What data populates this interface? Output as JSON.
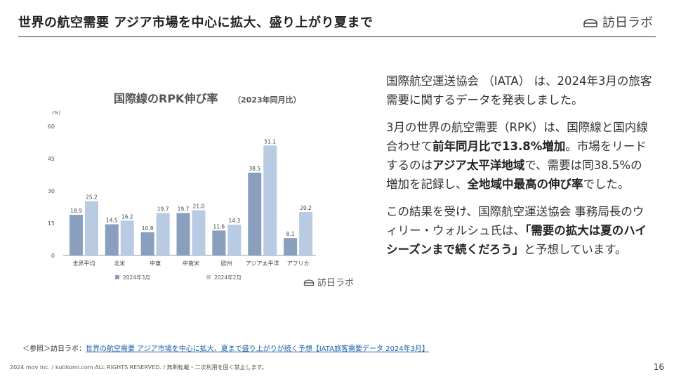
{
  "header": {
    "title": "世界の航空需要 アジア市場を中心に拡大、盛り上がり夏まで",
    "logo_text": "訪日ラボ"
  },
  "chart_data": {
    "type": "bar",
    "title": "国際線のRPK伸び率",
    "subtitle": "（2023年同月比）",
    "unit_label": "(%)",
    "categories": [
      "世界平均",
      "北米",
      "中東",
      "中南米",
      "欧州",
      "アジア太平洋",
      "アフリカ"
    ],
    "series": [
      {
        "name": "2024年3月",
        "color": "#8a9fbd",
        "values": [
          18.9,
          14.5,
          10.8,
          19.7,
          11.6,
          38.5,
          8.1
        ]
      },
      {
        "name": "2024年2月",
        "color": "#b8cbe3",
        "values": [
          25.2,
          16.2,
          19.7,
          21.0,
          14.3,
          51.1,
          20.2
        ]
      }
    ],
    "value_labels": [
      [
        "18.9",
        "14.5",
        "10.8",
        "19.7",
        "11.6",
        "38.5",
        "8.1"
      ],
      [
        "25.2",
        "16.2",
        "19.7",
        "21.0",
        "14.3",
        "51.1",
        "20.2"
      ]
    ],
    "yticks": [
      "0",
      "15",
      "30",
      "45",
      "60"
    ],
    "ylim": [
      0,
      60
    ],
    "grid": false,
    "legend_position": "bottom",
    "logo_text": "訪日ラボ"
  },
  "text": {
    "p1": "国際航空運送協会 （IATA） は、2024年3月の旅客需要に関するデータを発表しました。",
    "p2_a": "3月の世界の航空需要（RPK）は、国際線と国内線合わせて",
    "p2_b": "前年同月比で13.8%増加",
    "p2_c": "。市場をリードするのは",
    "p2_d": "アジア太平洋地域",
    "p2_e": "で、需要は同38.5%の増加を記録し、",
    "p2_f": "全地域中最高の伸び率",
    "p2_g": "でした。",
    "p3_a": "この結果を受け、国際航空運送協会 事務局長のウィリー・ウォルシュ氏は、",
    "p3_b": "「需要の拡大は夏のハイシーズンまで続くだろう」",
    "p3_c": "と予想しています。"
  },
  "reference": {
    "prefix": "＜参照＞訪日ラボ：",
    "link": "世界の航空需要 アジア市場を中心に拡大、夏まで盛り上がりが続く予想【IATA旅客需要データ 2024年3月】"
  },
  "footer": {
    "copyright": "2024 mov inc. / kutikomi.com ALL RIGHTS RESERVED. / 無断転載・二次利用を固く禁止します。",
    "page": "16"
  }
}
